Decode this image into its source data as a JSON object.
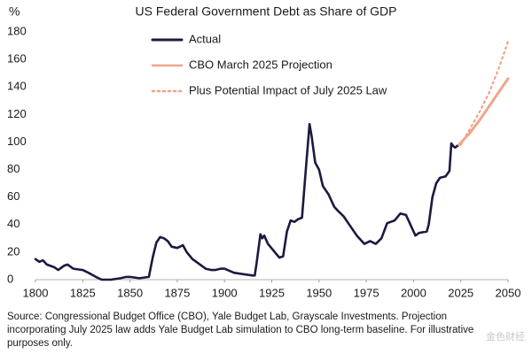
{
  "chart_data": {
    "type": "line",
    "title": "US Federal Government Debt as Share of GDP",
    "y_label": "%",
    "xlim": [
      1800,
      2050
    ],
    "xticks": [
      1800,
      1825,
      1850,
      1875,
      1900,
      1925,
      1950,
      1975,
      2000,
      2025,
      2050
    ],
    "ylim": [
      0,
      180
    ],
    "yticks": [
      0,
      20,
      40,
      60,
      80,
      100,
      120,
      140,
      160,
      180
    ],
    "grid": false,
    "legend": "top-center",
    "series": [
      {
        "name": "Actual",
        "color": "#1c1a3f",
        "style": "solid",
        "x": [
          1800,
          1802,
          1804,
          1806,
          1810,
          1812,
          1815,
          1817,
          1820,
          1825,
          1828,
          1832,
          1835,
          1840,
          1845,
          1848,
          1850,
          1855,
          1860,
          1862,
          1864,
          1866,
          1868,
          1870,
          1872,
          1875,
          1878,
          1880,
          1883,
          1886,
          1890,
          1893,
          1895,
          1898,
          1900,
          1905,
          1910,
          1915,
          1916,
          1917,
          1919,
          1920,
          1921,
          1923,
          1926,
          1929,
          1931,
          1933,
          1935,
          1937,
          1939,
          1941,
          1943,
          1945,
          1946,
          1948,
          1950,
          1952,
          1955,
          1958,
          1960,
          1963,
          1966,
          1970,
          1974,
          1977,
          1980,
          1983,
          1986,
          1990,
          1993,
          1996,
          2000,
          2001,
          2003,
          2007,
          2008,
          2010,
          2012,
          2014,
          2017,
          2019,
          2020,
          2021,
          2022,
          2024
        ],
        "values": [
          15,
          13,
          14,
          11,
          9,
          7,
          10,
          11,
          8,
          7,
          5,
          2,
          0,
          0,
          1,
          2,
          2,
          1,
          2,
          16,
          27,
          31,
          30,
          28,
          24,
          23,
          25,
          20,
          15,
          12,
          8,
          7,
          7,
          8,
          8,
          5,
          4,
          3,
          3,
          12,
          33,
          30,
          32,
          26,
          21,
          16,
          17,
          35,
          43,
          42,
          44,
          45,
          80,
          113,
          105,
          85,
          80,
          68,
          62,
          53,
          50,
          46,
          40,
          32,
          26,
          28,
          26,
          30,
          41,
          43,
          48,
          47,
          35,
          32,
          34,
          35,
          40,
          60,
          70,
          74,
          75,
          79,
          99,
          97,
          96,
          98
        ]
      },
      {
        "name": "CBO March 2025 Projection",
        "color": "#f0a58a",
        "style": "solid",
        "x": [
          2024,
          2030,
          2035,
          2040,
          2045,
          2050
        ],
        "values": [
          98,
          107,
          116,
          126,
          136,
          146
        ]
      },
      {
        "name": "Plus Potential Impact of July 2025 Law",
        "color": "#f0a58a",
        "style": "dotted",
        "x": [
          2025,
          2030,
          2035,
          2040,
          2045,
          2050
        ],
        "values": [
          98,
          110,
          122,
          136,
          153,
          173
        ]
      }
    ],
    "note_lines": [
      "Source: Congressional Budget Office (CBO), Yale Budget Lab, Grayscale Investments. Projection",
      "incorporating July 2025 law adds Yale Budget Lab simulation to CBO long-term baseline. For illustrative",
      "purposes only."
    ],
    "watermark": "金色财经"
  }
}
